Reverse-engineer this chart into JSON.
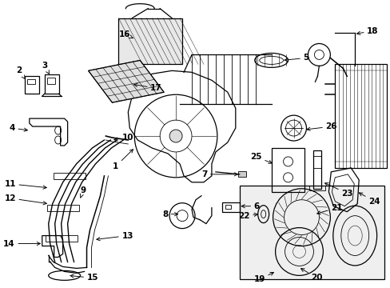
{
  "background_color": "#ffffff",
  "line_color": "#000000",
  "fig_width": 4.89,
  "fig_height": 3.6,
  "dpi": 100,
  "label_fontsize": 7.5
}
